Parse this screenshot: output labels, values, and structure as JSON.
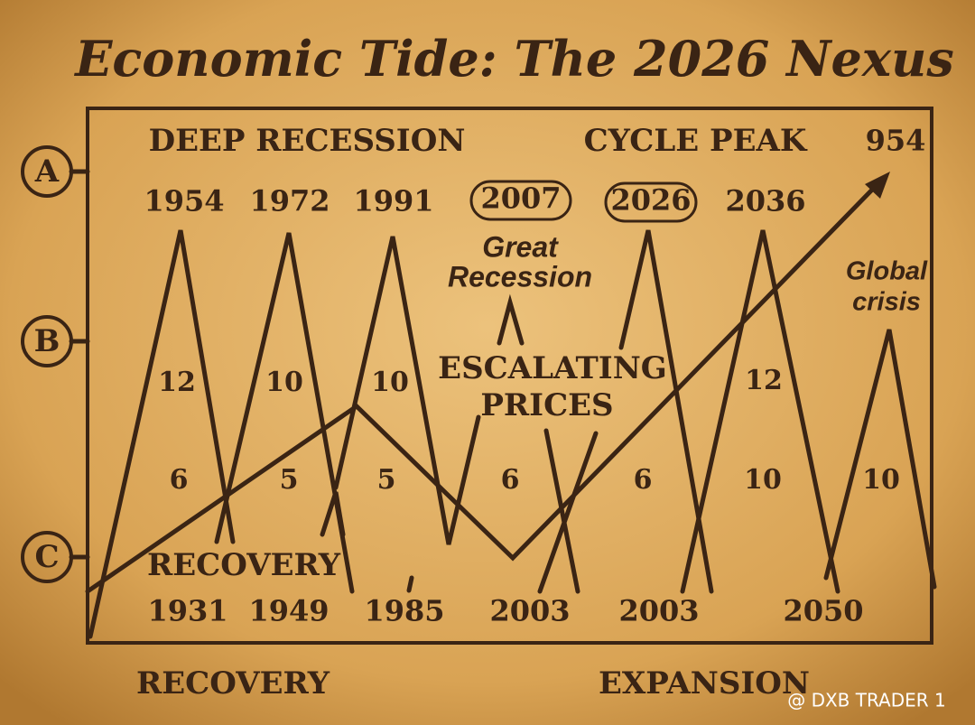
{
  "header": {
    "title": "Economic Tide: The 2026 Nexus"
  },
  "row_labels": [
    "A",
    "B",
    "C"
  ],
  "top_labels": {
    "left": "DEEP RECESSION",
    "right": "CYCLE PEAK",
    "corner": "954"
  },
  "peak_years": [
    "1954",
    "1972",
    "1991",
    "2007",
    "2026",
    "2036"
  ],
  "annotations": {
    "great_recession": [
      "Great",
      "Recession"
    ],
    "global_crisis": [
      "Global",
      "crisis"
    ],
    "escalating_prices": [
      "ESCALATING",
      "PRICES"
    ],
    "recovery": "RECOVERY"
  },
  "mid_numbers": [
    "12",
    "10",
    "10",
    "12"
  ],
  "low_numbers": [
    "6",
    "5",
    "5",
    "6",
    "6",
    "10",
    "10"
  ],
  "bottom_years": [
    "1931",
    "1949",
    "1985",
    "2003",
    "2003",
    "2050"
  ],
  "footer": {
    "left": "RECOVERY",
    "right": "EXPANSION"
  },
  "watermark": "@ DXB TRADER 1"
}
